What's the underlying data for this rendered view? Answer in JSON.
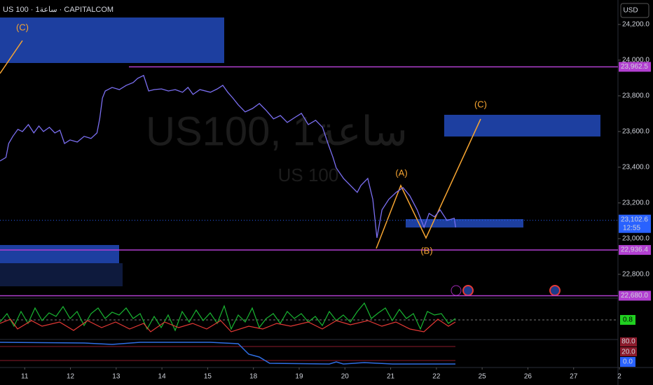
{
  "header": {
    "symbol": "US 100 · 1ساعة · CAPITALCOM",
    "currency": "USD"
  },
  "watermark": {
    "title": "US100, 1ساعة",
    "subtitle": "US 100"
  },
  "chart_data": {
    "type": "line",
    "x": [
      -0.54,
      -0.41,
      -0.35,
      -0.26,
      -0.15,
      -0.05,
      0.08,
      0.2,
      0.31,
      0.41,
      0.54,
      0.66,
      0.77,
      0.87,
      0.99,
      1.15,
      1.3,
      1.45,
      1.58,
      1.64,
      1.7,
      1.76,
      1.91,
      2.07,
      2.22,
      2.37,
      2.47,
      2.6,
      2.71,
      2.83,
      2.99,
      3.14,
      3.29,
      3.45,
      3.57,
      3.68,
      3.83,
      4.06,
      4.21,
      4.33,
      4.44,
      4.55,
      4.67,
      4.82,
      4.98,
      5.13,
      5.28,
      5.44,
      5.59,
      5.74,
      5.9,
      6.05,
      6.2,
      6.36,
      6.51,
      6.63,
      6.74,
      6.81,
      6.97,
      7.12,
      7.27,
      7.35,
      7.5,
      7.61,
      7.7,
      7.81,
      7.96,
      8.12,
      8.27,
      8.42,
      8.58,
      8.73,
      8.84,
      8.96,
      9.08,
      9.23,
      9.39,
      9.42
    ],
    "series": [
      {
        "color": "#7b6ff2",
        "values": [
          23435,
          23455,
          23533,
          23573,
          23612,
          23600,
          23639,
          23592,
          23631,
          23600,
          23624,
          23592,
          23608,
          23533,
          23553,
          23541,
          23573,
          23561,
          23592,
          23671,
          23788,
          23827,
          23847,
          23835,
          23859,
          23874,
          23898,
          23914,
          23827,
          23835,
          23839,
          23827,
          23835,
          23820,
          23847,
          23808,
          23835,
          23820,
          23839,
          23859,
          23820,
          23788,
          23749,
          23710,
          23729,
          23757,
          23718,
          23671,
          23690,
          23651,
          23678,
          23702,
          23639,
          23663,
          23624,
          23533,
          23455,
          23396,
          23337,
          23298,
          23259,
          23298,
          23337,
          23220,
          23004,
          23161,
          23220,
          23259,
          23286,
          23239,
          23161,
          23063,
          23141,
          23122,
          23161,
          23102,
          23114,
          23063
        ]
      }
    ],
    "xlim": [
      -0.54,
      13
    ],
    "xticks": [
      {
        "value": 0,
        "label": "11"
      },
      {
        "value": 1,
        "label": "12"
      },
      {
        "value": 2,
        "label": "13"
      },
      {
        "value": 3,
        "label": "14"
      },
      {
        "value": 4,
        "label": "15"
      },
      {
        "value": 5,
        "label": "18"
      },
      {
        "value": 6,
        "label": "19"
      },
      {
        "value": 7,
        "label": "20"
      },
      {
        "value": 8,
        "label": "21"
      },
      {
        "value": 9,
        "label": "22"
      },
      {
        "value": 10,
        "label": "25"
      },
      {
        "value": 11,
        "label": "26"
      },
      {
        "value": 12,
        "label": "27"
      },
      {
        "value": 13,
        "label": "2"
      }
    ],
    "ylim": [
      22670,
      24337
    ],
    "yticks": [
      {
        "value": 22800,
        "label": "22,800.0"
      },
      {
        "value": 23000,
        "label": "23,000.0"
      },
      {
        "value": 23200,
        "label": "23,200.0"
      },
      {
        "value": 23400,
        "label": "23,400.0"
      },
      {
        "value": 23600,
        "label": "23,600.0"
      },
      {
        "value": 23800,
        "label": "23,800.0"
      },
      {
        "value": 24000,
        "label": "24,000.0"
      },
      {
        "value": 24200,
        "label": "24,200.0"
      }
    ],
    "price_lines": [
      {
        "value": 23962.5,
        "label": "23,962.5",
        "color": "#b23fd1"
      },
      {
        "value": 22936.4,
        "label": "22,936.4",
        "color": "#b23fd1"
      },
      {
        "value": 22680,
        "label": "22,680.0",
        "color": "#b23fd1"
      }
    ],
    "last_price": {
      "value": 23102.6,
      "label": "23,102.6",
      "countdown": "12:55"
    },
    "annotations": [
      "(C)",
      "(A)",
      "(B)",
      "(C)"
    ]
  },
  "indicators": {
    "osc_value": "0.8",
    "levels": [
      "80.0",
      "20.0",
      "0.0"
    ]
  }
}
